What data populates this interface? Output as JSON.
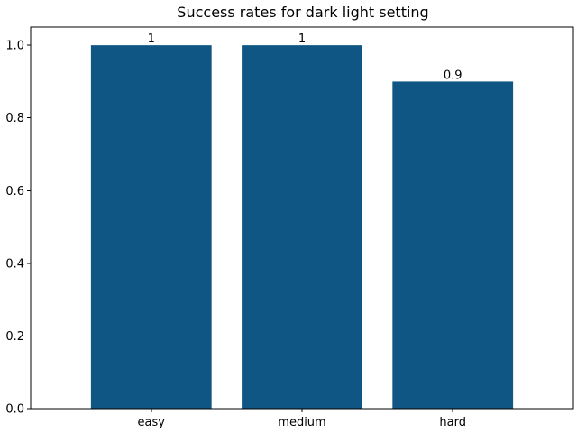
{
  "chart_data": {
    "type": "bar",
    "title": "Success rates for dark light setting",
    "categories": [
      "easy",
      "medium",
      "hard"
    ],
    "values": [
      1.0,
      1.0,
      0.9
    ],
    "data_labels": [
      "1",
      "1",
      "0.9"
    ],
    "xlabel": "",
    "ylabel": "",
    "ylim": [
      0,
      1.05
    ],
    "yticks": [
      0.0,
      0.2,
      0.4,
      0.6,
      0.8,
      1.0
    ],
    "ytick_labels": [
      "0.0",
      "0.2",
      "0.4",
      "0.6",
      "0.8",
      "1.0"
    ],
    "grid": false,
    "bar_color": "#0f5685"
  }
}
